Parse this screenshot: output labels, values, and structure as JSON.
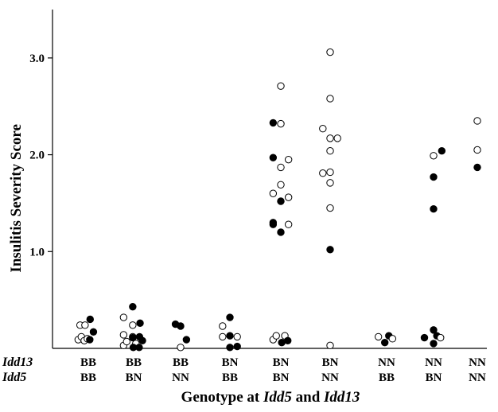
{
  "chart_data": {
    "type": "scatter",
    "title": "",
    "ylabel": "Insulitis Severity Score",
    "xlabel_parts": [
      "Genotype at ",
      "Idd5",
      " and ",
      "Idd13"
    ],
    "row_labels": [
      "Idd13",
      "Idd5"
    ],
    "ylim": [
      0,
      3.5
    ],
    "yticks": [
      1.0,
      2.0,
      3.0
    ],
    "ytick_labels": [
      "1.0",
      "2.0",
      "3.0"
    ],
    "grid": false,
    "legend": "none",
    "categories": [
      {
        "idd13": "BB",
        "idd5": "BB"
      },
      {
        "idd13": "BB",
        "idd5": "BN"
      },
      {
        "idd13": "BB",
        "idd5": "NN"
      },
      {
        "idd13": "BN",
        "idd5": "BB"
      },
      {
        "idd13": "BN",
        "idd5": "BN"
      },
      {
        "idd13": "BN",
        "idd5": "NN"
      },
      {
        "idd13": "NN",
        "idd5": "BB"
      },
      {
        "idd13": "NN",
        "idd5": "BN"
      },
      {
        "idd13": "NN",
        "idd5": "NN"
      }
    ],
    "points": [
      {
        "g": 0,
        "o": -0.45,
        "y": 0.24,
        "f": 0
      },
      {
        "g": 0,
        "o": -0.18,
        "y": 0.24,
        "f": 0
      },
      {
        "g": 0,
        "o": -0.55,
        "y": 0.09,
        "f": 0
      },
      {
        "g": 0,
        "o": -0.38,
        "y": 0.12,
        "f": 0
      },
      {
        "g": 0,
        "o": -0.22,
        "y": 0.08,
        "f": 0
      },
      {
        "g": 0,
        "o": -0.05,
        "y": 0.1,
        "f": 0
      },
      {
        "g": 0,
        "o": 0.1,
        "y": 0.3,
        "f": 1
      },
      {
        "g": 0,
        "o": 0.28,
        "y": 0.17,
        "f": 1
      },
      {
        "g": 0,
        "o": 0.08,
        "y": 0.09,
        "f": 1
      },
      {
        "g": 1,
        "o": -0.55,
        "y": 0.32,
        "f": 0
      },
      {
        "g": 1,
        "o": -0.55,
        "y": 0.14,
        "f": 0
      },
      {
        "g": 1,
        "o": -0.55,
        "y": 0.03,
        "f": 0
      },
      {
        "g": 1,
        "o": -0.38,
        "y": 0.07,
        "f": 0
      },
      {
        "g": 1,
        "o": -0.05,
        "y": 0.24,
        "f": 0
      },
      {
        "g": 1,
        "o": -0.05,
        "y": 0.12,
        "f": 0
      },
      {
        "g": 1,
        "o": 0.12,
        "y": 0.05,
        "f": 0
      },
      {
        "g": 1,
        "o": -0.05,
        "y": 0.43,
        "f": 1
      },
      {
        "g": 1,
        "o": 0.35,
        "y": 0.26,
        "f": 1
      },
      {
        "g": 1,
        "o": -0.05,
        "y": 0.11,
        "f": 1
      },
      {
        "g": 1,
        "o": 0.32,
        "y": 0.12,
        "f": 1
      },
      {
        "g": 1,
        "o": 0.48,
        "y": 0.08,
        "f": 1
      },
      {
        "g": 1,
        "o": -0.02,
        "y": 0.01,
        "f": 1
      },
      {
        "g": 1,
        "o": 0.3,
        "y": 0.01,
        "f": 1
      },
      {
        "g": 2,
        "o": -0.28,
        "y": 0.25,
        "f": 1
      },
      {
        "g": 2,
        "o": 0.0,
        "y": 0.23,
        "f": 1
      },
      {
        "g": 2,
        "o": 0.0,
        "y": 0.01,
        "f": 0
      },
      {
        "g": 2,
        "o": 0.32,
        "y": 0.09,
        "f": 1
      },
      {
        "g": 3,
        "o": -0.4,
        "y": 0.23,
        "f": 0
      },
      {
        "g": 3,
        "o": -0.4,
        "y": 0.12,
        "f": 0
      },
      {
        "g": 3,
        "o": 0.0,
        "y": 0.32,
        "f": 1
      },
      {
        "g": 3,
        "o": 0.0,
        "y": 0.13,
        "f": 1
      },
      {
        "g": 3,
        "o": 0.4,
        "y": 0.12,
        "f": 0
      },
      {
        "g": 3,
        "o": 0.0,
        "y": 0.01,
        "f": 1
      },
      {
        "g": 3,
        "o": 0.4,
        "y": 0.02,
        "f": 1
      },
      {
        "g": 4,
        "o": 0.0,
        "y": 2.71,
        "f": 0
      },
      {
        "g": 4,
        "o": -0.42,
        "y": 2.33,
        "f": 1
      },
      {
        "g": 4,
        "o": 0.0,
        "y": 2.32,
        "f": 0
      },
      {
        "g": 4,
        "o": -0.42,
        "y": 1.97,
        "f": 1
      },
      {
        "g": 4,
        "o": 0.42,
        "y": 1.95,
        "f": 0
      },
      {
        "g": 4,
        "o": 0.0,
        "y": 1.87,
        "f": 0
      },
      {
        "g": 4,
        "o": 0.0,
        "y": 1.69,
        "f": 0
      },
      {
        "g": 4,
        "o": -0.42,
        "y": 1.6,
        "f": 0
      },
      {
        "g": 4,
        "o": 0.42,
        "y": 1.56,
        "f": 0
      },
      {
        "g": 4,
        "o": 0.0,
        "y": 1.52,
        "f": 1
      },
      {
        "g": 4,
        "o": -0.42,
        "y": 1.3,
        "f": 1
      },
      {
        "g": 4,
        "o": 0.42,
        "y": 1.28,
        "f": 0
      },
      {
        "g": 4,
        "o": -0.42,
        "y": 1.28,
        "f": 1
      },
      {
        "g": 4,
        "o": 0.0,
        "y": 1.2,
        "f": 1
      },
      {
        "g": 4,
        "o": -0.42,
        "y": 0.09,
        "f": 0
      },
      {
        "g": 4,
        "o": -0.25,
        "y": 0.13,
        "f": 0
      },
      {
        "g": 4,
        "o": 0.05,
        "y": 0.06,
        "f": 1
      },
      {
        "g": 4,
        "o": 0.22,
        "y": 0.13,
        "f": 0
      },
      {
        "g": 4,
        "o": 0.38,
        "y": 0.08,
        "f": 1
      },
      {
        "g": 5,
        "o": 0.0,
        "y": 3.06,
        "f": 0
      },
      {
        "g": 5,
        "o": 0.0,
        "y": 2.58,
        "f": 0
      },
      {
        "g": 5,
        "o": -0.4,
        "y": 2.27,
        "f": 0
      },
      {
        "g": 5,
        "o": 0.0,
        "y": 2.17,
        "f": 0
      },
      {
        "g": 5,
        "o": 0.4,
        "y": 2.17,
        "f": 0
      },
      {
        "g": 5,
        "o": 0.0,
        "y": 2.04,
        "f": 0
      },
      {
        "g": 5,
        "o": -0.4,
        "y": 1.81,
        "f": 0
      },
      {
        "g": 5,
        "o": 0.0,
        "y": 1.82,
        "f": 0
      },
      {
        "g": 5,
        "o": 0.0,
        "y": 1.71,
        "f": 0
      },
      {
        "g": 5,
        "o": 0.0,
        "y": 1.45,
        "f": 0
      },
      {
        "g": 5,
        "o": 0.0,
        "y": 1.02,
        "f": 1
      },
      {
        "g": 5,
        "o": 0.0,
        "y": 0.03,
        "f": 0
      },
      {
        "g": 6,
        "o": -0.45,
        "y": 0.12,
        "f": 0
      },
      {
        "g": 6,
        "o": -0.1,
        "y": 0.06,
        "f": 1
      },
      {
        "g": 6,
        "o": 0.12,
        "y": 0.13,
        "f": 1
      },
      {
        "g": 6,
        "o": 0.32,
        "y": 0.1,
        "f": 0
      },
      {
        "g": 7,
        "o": 0.0,
        "y": 1.99,
        "f": 0
      },
      {
        "g": 7,
        "o": 0.45,
        "y": 2.04,
        "f": 1
      },
      {
        "g": 7,
        "o": 0.0,
        "y": 1.77,
        "f": 1
      },
      {
        "g": 7,
        "o": 0.0,
        "y": 1.44,
        "f": 1
      },
      {
        "g": 7,
        "o": -0.5,
        "y": 0.11,
        "f": 1
      },
      {
        "g": 7,
        "o": 0.0,
        "y": 0.19,
        "f": 1
      },
      {
        "g": 7,
        "o": 0.18,
        "y": 0.13,
        "f": 1
      },
      {
        "g": 7,
        "o": 0.0,
        "y": 0.05,
        "f": 1
      },
      {
        "g": 7,
        "o": 0.38,
        "y": 0.11,
        "f": 0
      },
      {
        "g": 8,
        "o": 0.0,
        "y": 2.35,
        "f": 0
      },
      {
        "g": 8,
        "o": 0.0,
        "y": 2.05,
        "f": 0
      },
      {
        "g": 8,
        "o": 0.0,
        "y": 1.87,
        "f": 1
      }
    ]
  }
}
